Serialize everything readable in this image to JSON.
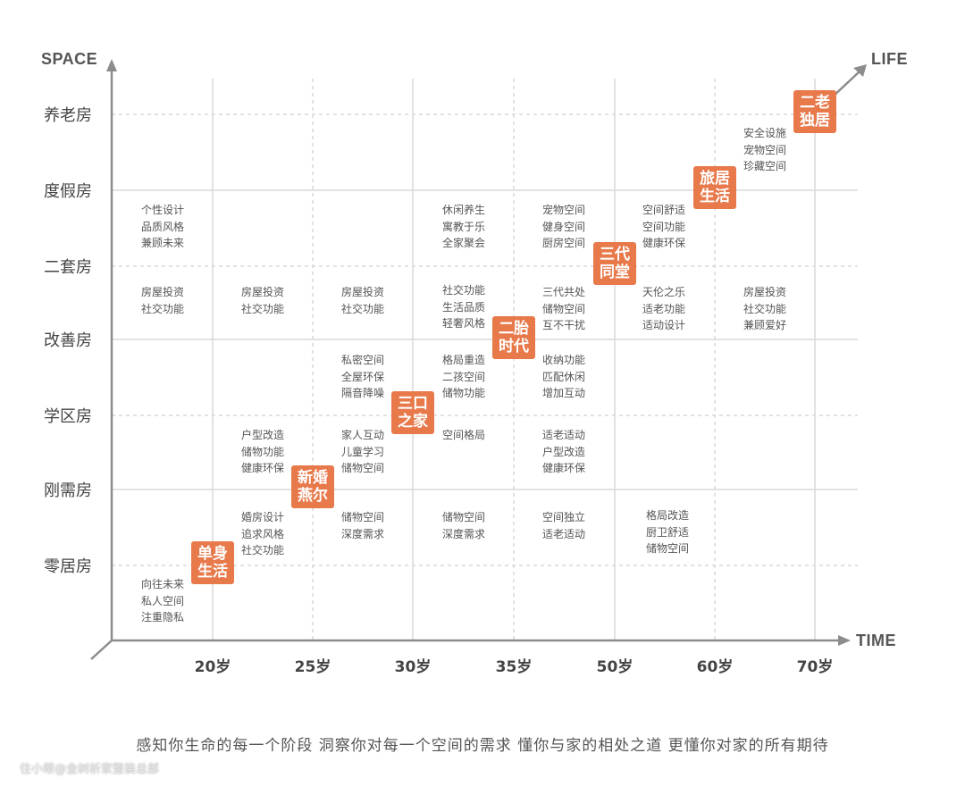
{
  "axes": {
    "y_title": "SPACE",
    "x_title": "TIME",
    "diag_title": "LIFE"
  },
  "rows": [
    "养老房",
    "度假房",
    "二套房",
    "改善房",
    "学区房",
    "刚需房",
    "零居房"
  ],
  "cols": [
    "20岁",
    "25岁",
    "30岁",
    "35岁",
    "50岁",
    "60岁",
    "70岁"
  ],
  "stages": [
    "单身\n生活",
    "新婚\n燕尔",
    "三口\n之家",
    "二胎\n时代",
    "三代\n同堂",
    "旅居\n生活",
    "二老\n独居"
  ],
  "notes": [
    {
      "col": 0,
      "row": 1,
      "text": "个性设计\n品质风格\n兼顾未来"
    },
    {
      "col": 0,
      "row": 2,
      "text": "房屋投资\n社交功能"
    },
    {
      "col": 0,
      "row": 6,
      "text": "向往未来\n私人空间\n注重隐私"
    },
    {
      "col": 1,
      "row": 2,
      "text": "房屋投资\n社交功能"
    },
    {
      "col": 1,
      "row": 4,
      "text": "户型改造\n储物功能\n健康环保"
    },
    {
      "col": 1,
      "row": 5,
      "text": "婚房设计\n追求风格\n社交功能"
    },
    {
      "col": 2,
      "row": 2,
      "text": "房屋投资\n社交功能"
    },
    {
      "col": 2,
      "row": 3,
      "text": "私密空间\n全屋环保\n隔音降噪"
    },
    {
      "col": 2,
      "row": 4,
      "text": "家人互动\n儿童学习\n储物空间"
    },
    {
      "col": 2,
      "row": 5,
      "text": "储物空间\n深度需求"
    },
    {
      "col": 3,
      "row": 1,
      "text": "休闲养生\n寓教于乐\n全家聚会"
    },
    {
      "col": 3,
      "row": 2,
      "text": "社交功能\n生活品质\n轻奢风格"
    },
    {
      "col": 3,
      "row": 3,
      "text": "格局重造\n二孩空间\n储物功能"
    },
    {
      "col": 3,
      "row": 4,
      "text": "空间格局"
    },
    {
      "col": 3,
      "row": 5,
      "text": "储物空间\n深度需求"
    },
    {
      "col": 4,
      "row": 1,
      "text": "宠物空间\n健身空间\n厨房空间"
    },
    {
      "col": 4,
      "row": 2,
      "text": "三代共处\n储物空间\n互不干扰"
    },
    {
      "col": 4,
      "row": 3,
      "text": "收纳功能\n匹配休闲\n增加互动"
    },
    {
      "col": 4,
      "row": 4,
      "text": "适老适动\n户型改造\n健康环保"
    },
    {
      "col": 4,
      "row": 5,
      "text": "空间独立\n适老适动"
    },
    {
      "col": 5,
      "row": 1,
      "text": "空间舒适\n空间功能\n健康环保"
    },
    {
      "col": 5,
      "row": 2,
      "text": "天伦之乐\n适老功能\n适动设计"
    },
    {
      "col": 5,
      "row": 5,
      "text": "格局改造\n厨卫舒适\n储物空间"
    },
    {
      "col": 6,
      "row": 0,
      "text": "安全设施\n宠物空间\n珍藏空间"
    },
    {
      "col": 6,
      "row": 2,
      "text": "房屋投资\n社交功能\n兼顾爱好"
    }
  ],
  "tagline": "感知你生命的每一个阶段   洞察你对每一个空间的需求   懂你与家的相处之道   更懂你对家的所有期待",
  "watermark": "住小帮@金树析家整装总部",
  "colors": {
    "accent": "#e7794b",
    "grid": "#d9d9d9",
    "axis": "#8c8c8c",
    "text": "#555555"
  }
}
